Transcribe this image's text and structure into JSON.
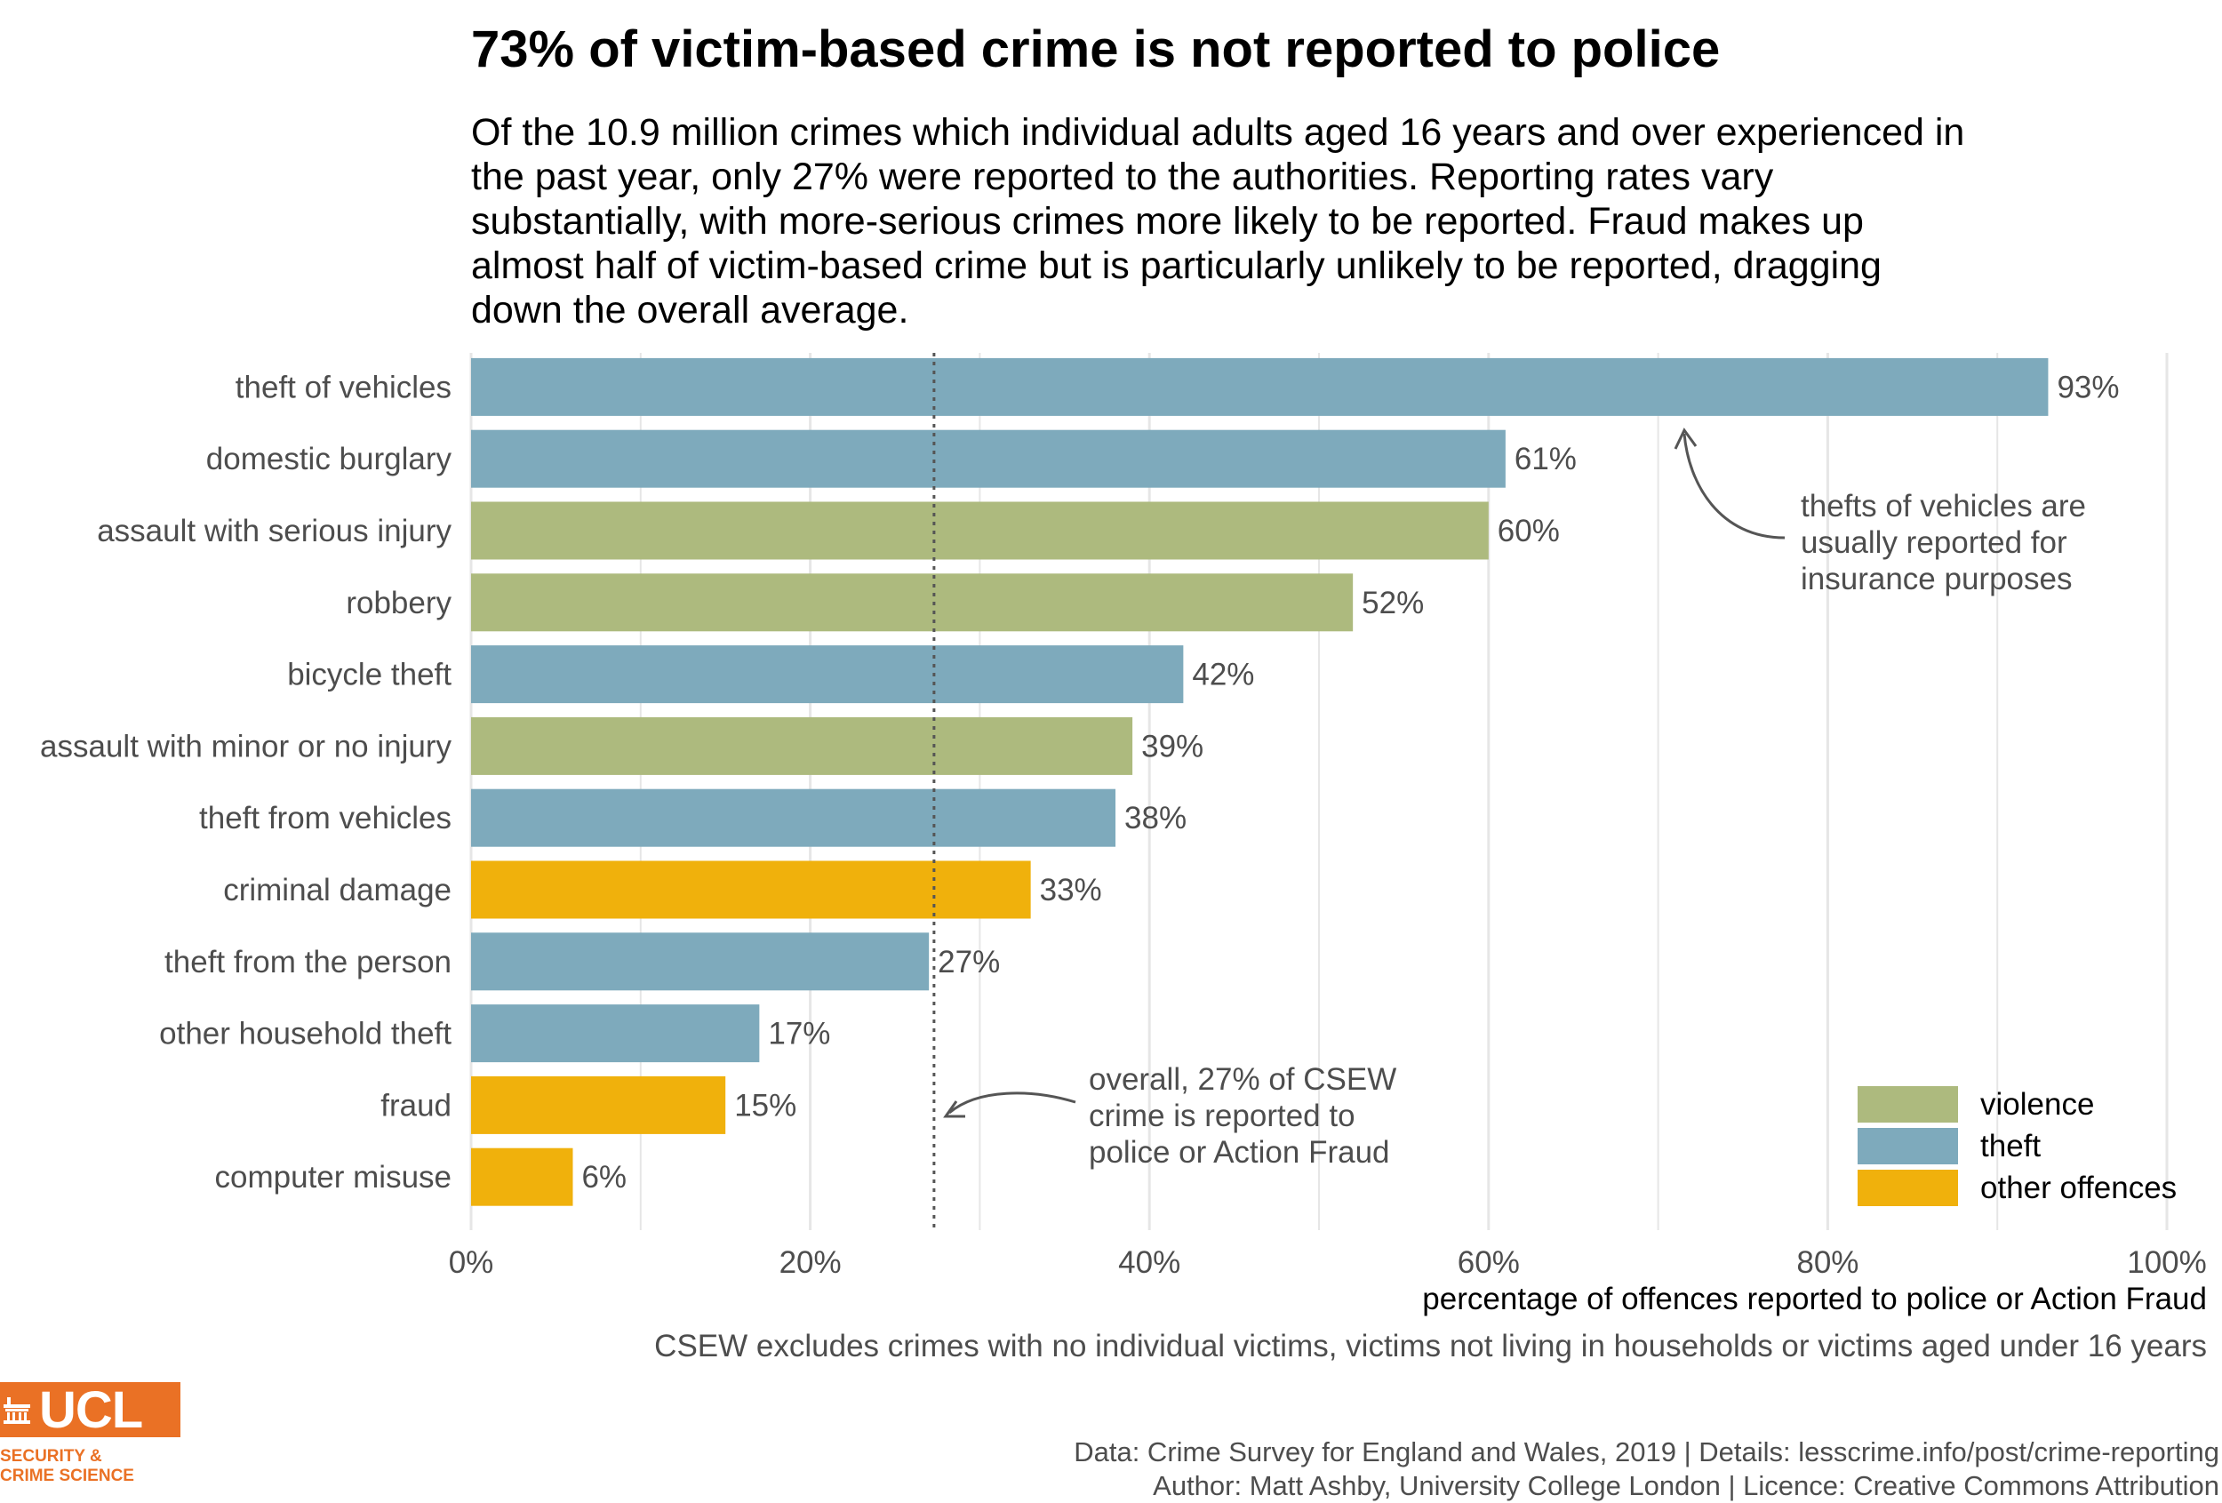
{
  "title": "73% of victim-based crime is not reported to police",
  "subtitle": "Of the 10.9 million crimes which individual adults aged 16 years and over experienced in the past year, only 27% were reported to the authorities. Reporting rates vary substantially, with more-serious crimes more likely to be reported. Fraud makes up almost half of victim-based crime but is particularly unlikely to be reported, dragging down the overall average.",
  "chart_data": {
    "type": "bar",
    "orientation": "horizontal",
    "xlabel": "percentage of offences reported to police or Action Fraud",
    "xlim": [
      0,
      100
    ],
    "x_ticks": [
      "0%",
      "20%",
      "40%",
      "60%",
      "80%",
      "100%"
    ],
    "grid": true,
    "categories": [
      "theft of vehicles",
      "domestic burglary",
      "assault with serious injury",
      "robbery",
      "bicycle theft",
      "assault with minor or no injury",
      "theft from vehicles",
      "criminal damage",
      "theft from the person",
      "other household theft",
      "fraud",
      "computer misuse"
    ],
    "values": [
      93,
      61,
      60,
      52,
      42,
      39,
      38,
      33,
      27,
      17,
      15,
      6
    ],
    "value_labels": [
      "93%",
      "61%",
      "60%",
      "52%",
      "42%",
      "39%",
      "38%",
      "33%",
      "27%",
      "17%",
      "15%",
      "6%"
    ],
    "groups": [
      "theft",
      "theft",
      "violence",
      "violence",
      "theft",
      "violence",
      "theft",
      "other offences",
      "theft",
      "theft",
      "other offences",
      "other offences"
    ],
    "legend": {
      "placement": "bottom-right",
      "items": [
        {
          "name": "violence",
          "color": "#adba7e"
        },
        {
          "name": "theft",
          "color": "#7eaabc"
        },
        {
          "name": "other offences",
          "color": "#f0b10c"
        }
      ]
    },
    "reference_line": {
      "value": 27.3,
      "style": "dotted"
    },
    "annotations": [
      {
        "text": [
          "thefts of vehicles are",
          "usually reported for",
          "insurance purposes"
        ],
        "target_value": 72
      },
      {
        "text": [
          "overall, 27% of CSEW",
          "crime is reported to",
          "police or Action Fraud"
        ],
        "target_value": 27.3
      }
    ]
  },
  "caption": "CSEW excludes crimes with no individual victims, victims not living in households or victims aged under 16 years",
  "source_lines": [
    "Data: Crime Survey for England and Wales, 2019 |  Details: lesscrime.info/post/crime-reporting",
    "Author: Matt Ashby, University College London |  Licence: Creative Commons Attribution"
  ],
  "logo": {
    "text": "UCL",
    "subtext_lines": [
      "SECURITY &",
      "CRIME SCIENCE"
    ],
    "color": "#ea7125"
  }
}
